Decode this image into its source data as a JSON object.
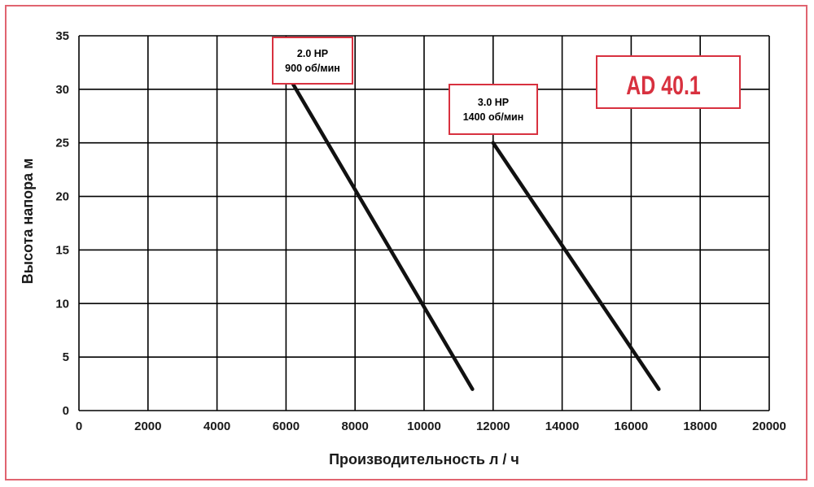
{
  "colors": {
    "frame_border": "#e06470",
    "callout_border": "#d8313f",
    "brand_text": "#d8313f",
    "grid": "#000000",
    "series_line": "#111111"
  },
  "brand_label": "AD 40.1",
  "chart_data": {
    "type": "line",
    "xlabel": "Производительность л / ч",
    "ylabel": "Высота напора м",
    "xlim": [
      0,
      20000
    ],
    "ylim": [
      0,
      35
    ],
    "xticks": [
      0,
      2000,
      4000,
      6000,
      8000,
      10000,
      12000,
      14000,
      16000,
      18000,
      20000
    ],
    "yticks": [
      0,
      5,
      10,
      15,
      20,
      25,
      30,
      35
    ],
    "grid": true,
    "series": [
      {
        "name_line1": "2.0 HP",
        "name_line2": "900 об/мин",
        "x": [
          6200,
          11400
        ],
        "y": [
          30.5,
          2
        ]
      },
      {
        "name_line1": "3.0 HP",
        "name_line2": "1400 об/мин",
        "x": [
          12000,
          16800
        ],
        "y": [
          25,
          2
        ]
      }
    ]
  }
}
